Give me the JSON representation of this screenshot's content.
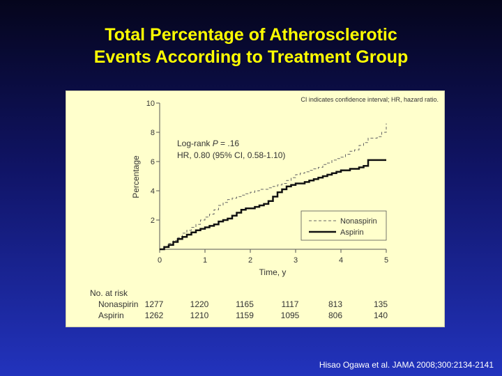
{
  "slide": {
    "title_line1": "Total Percentage of Atherosclerotic",
    "title_line2": "Events According to Treatment Group",
    "citation": "Hisao Ogawa et al. JAMA 2008;300:2134-2141"
  },
  "colors": {
    "title": "#ffff00",
    "panel": "#ffffcc",
    "nonaspirin": "#666666",
    "aspirin": "#111111"
  },
  "chart_data": {
    "type": "line",
    "note": "CI indicates confidence interval; HR, hazard ratio.",
    "xlabel": "Time, y",
    "ylabel": "Percentage",
    "xlim": [
      0,
      5
    ],
    "ylim": [
      0,
      10
    ],
    "x_ticks": [
      "0",
      "1",
      "2",
      "3",
      "4",
      "5"
    ],
    "y_ticks": [
      "2",
      "4",
      "6",
      "8",
      "10"
    ],
    "stats_logrank_prefix": "Log-rank ",
    "stats_logrank_p": "P",
    "stats_logrank_value": " = .16",
    "stats_hr": "HR, 0.80 (95% CI, 0.58-1.10)",
    "legend_position": "bottom-right",
    "grid": false,
    "series": [
      {
        "name": "Nonaspirin",
        "style": "dashed",
        "x": [
          0,
          0.1,
          0.2,
          0.3,
          0.4,
          0.5,
          0.6,
          0.7,
          0.8,
          0.9,
          1.0,
          1.1,
          1.2,
          1.3,
          1.4,
          1.5,
          1.6,
          1.7,
          1.8,
          1.9,
          2.0,
          2.1,
          2.2,
          2.3,
          2.4,
          2.5,
          2.6,
          2.7,
          2.8,
          2.9,
          3.0,
          3.1,
          3.2,
          3.3,
          3.4,
          3.5,
          3.6,
          3.7,
          3.8,
          3.9,
          4.0,
          4.1,
          4.2,
          4.3,
          4.4,
          4.5,
          4.6,
          4.7,
          4.8,
          4.9,
          5.0
        ],
        "y": [
          0,
          0.2,
          0.4,
          0.6,
          0.8,
          1.1,
          1.3,
          1.5,
          1.7,
          2.0,
          2.2,
          2.4,
          2.7,
          3.0,
          3.2,
          3.4,
          3.5,
          3.6,
          3.7,
          3.8,
          3.9,
          4.0,
          4.1,
          4.1,
          4.2,
          4.3,
          4.4,
          4.5,
          4.7,
          4.9,
          5.1,
          5.2,
          5.3,
          5.4,
          5.5,
          5.6,
          5.8,
          5.9,
          6.1,
          6.2,
          6.3,
          6.5,
          6.7,
          6.8,
          7.1,
          7.3,
          7.6,
          7.6,
          7.7,
          8.0,
          8.6
        ]
      },
      {
        "name": "Aspirin",
        "style": "solid",
        "x": [
          0,
          0.1,
          0.2,
          0.3,
          0.4,
          0.5,
          0.6,
          0.7,
          0.8,
          0.9,
          1.0,
          1.1,
          1.2,
          1.3,
          1.4,
          1.5,
          1.6,
          1.7,
          1.8,
          1.9,
          2.0,
          2.1,
          2.2,
          2.3,
          2.4,
          2.5,
          2.6,
          2.7,
          2.8,
          2.9,
          3.0,
          3.1,
          3.2,
          3.3,
          3.4,
          3.5,
          3.6,
          3.7,
          3.8,
          3.9,
          4.0,
          4.1,
          4.2,
          4.3,
          4.4,
          4.5,
          4.6,
          4.7,
          4.8,
          4.9,
          5.0
        ],
        "y": [
          0,
          0.15,
          0.3,
          0.5,
          0.7,
          0.85,
          1.0,
          1.15,
          1.3,
          1.4,
          1.5,
          1.6,
          1.7,
          1.9,
          2.0,
          2.1,
          2.3,
          2.5,
          2.7,
          2.8,
          2.8,
          2.9,
          3.0,
          3.1,
          3.3,
          3.6,
          3.9,
          4.1,
          4.3,
          4.4,
          4.5,
          4.5,
          4.6,
          4.7,
          4.8,
          4.9,
          5.0,
          5.1,
          5.2,
          5.3,
          5.4,
          5.4,
          5.5,
          5.5,
          5.6,
          5.7,
          6.1,
          6.1,
          6.1,
          6.1,
          6.1
        ]
      }
    ],
    "risk_table": {
      "heading": "No. at risk",
      "rows": [
        {
          "label": "Nonaspirin",
          "values": [
            "1277",
            "1220",
            "1165",
            "1117",
            "813",
            "135"
          ]
        },
        {
          "label": "Aspirin",
          "values": [
            "1262",
            "1210",
            "1159",
            "1095",
            "806",
            "140"
          ]
        }
      ]
    }
  }
}
